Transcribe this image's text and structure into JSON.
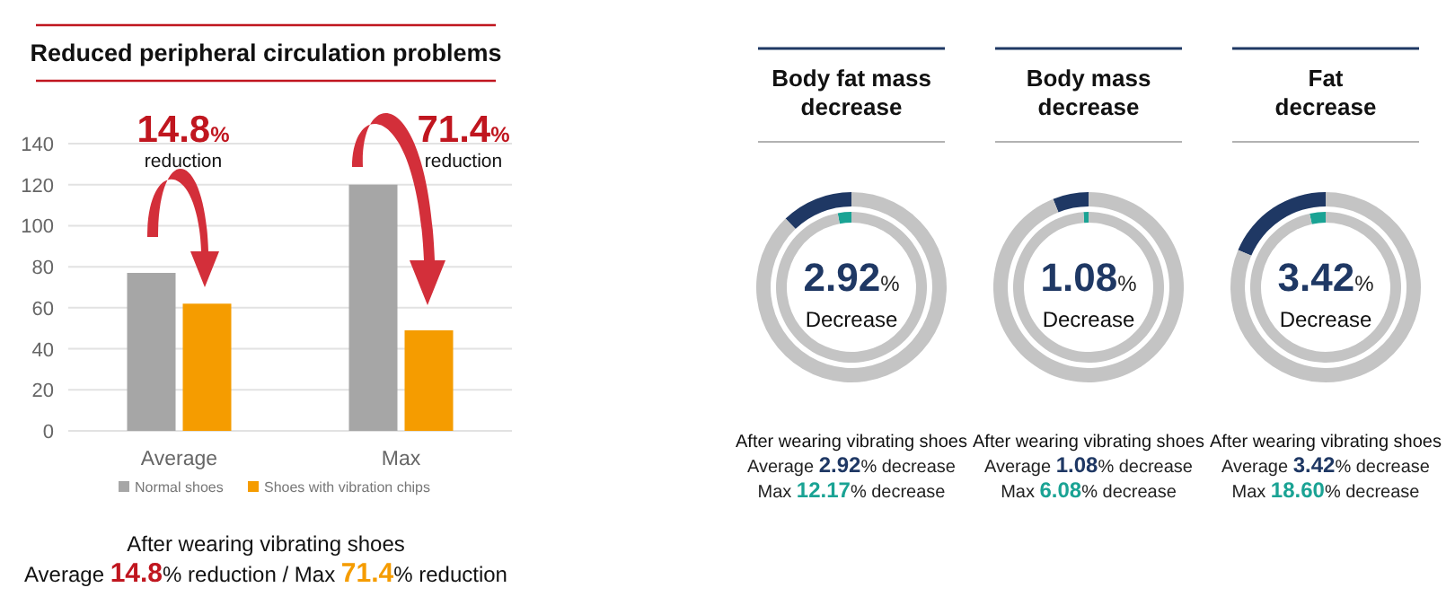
{
  "chart_data": [
    {
      "type": "bar",
      "title": "Reduced peripheral circulation problems",
      "categories": [
        "Average",
        "Max"
      ],
      "series": [
        {
          "name": "Normal shoes",
          "color": "#a6a6a6",
          "values": [
            77,
            120
          ]
        },
        {
          "name": "Shoes with vibration chips",
          "color": "#f59c00",
          "values": [
            62,
            49
          ]
        }
      ],
      "ylim": [
        0,
        140
      ],
      "yticks": [
        0,
        20,
        40,
        60,
        80,
        100,
        120,
        140
      ],
      "grid": "y",
      "legend": "bottom",
      "annotations": [
        "14.8% reduction",
        "71.4% reduction",
        "After wearing vibrating shoes",
        "Average 14.8% reduction / Max 71.4% reduction"
      ]
    },
    {
      "type": "donut",
      "title": "Body fat mass decrease",
      "colors": [
        "#1f3864",
        "#c4c4c4"
      ],
      "values": [
        12.17,
        87.83
      ],
      "annotations": [
        "2.92%",
        "Decrease",
        "After wearing vibrating shoes",
        "Average 2.92% decrease",
        "Max 12.17% decrease"
      ]
    },
    {
      "type": "donut",
      "colors": [
        "#1aa394",
        "#c4c4c4"
      ],
      "values": [
        2.92,
        97.08
      ]
    },
    {
      "type": "donut",
      "title": "Body mass decrease",
      "colors": [
        "#1f3864",
        "#c4c4c4"
      ],
      "values": [
        6.08,
        93.92
      ],
      "annotations": [
        "1.08%",
        "Decrease",
        "After wearing vibrating shoes",
        "Average 1.08% decrease",
        "Max 6.08% decrease"
      ]
    },
    {
      "type": "donut",
      "colors": [
        "#1aa394",
        "#c4c4c4"
      ],
      "values": [
        1.08,
        98.92
      ]
    },
    {
      "type": "donut",
      "title": "Fat decrease",
      "colors": [
        "#1f3864",
        "#c4c4c4"
      ],
      "values": [
        18.6,
        81.4
      ],
      "annotations": [
        "3.42%",
        "Decrease",
        "After wearing vibrating shoes",
        "Average 3.42% decrease",
        "Max 18.60% decrease"
      ]
    },
    {
      "type": "donut",
      "colors": [
        "#1aa394",
        "#c4c4c4"
      ],
      "values": [
        3.42,
        96.58
      ]
    }
  ]
}
